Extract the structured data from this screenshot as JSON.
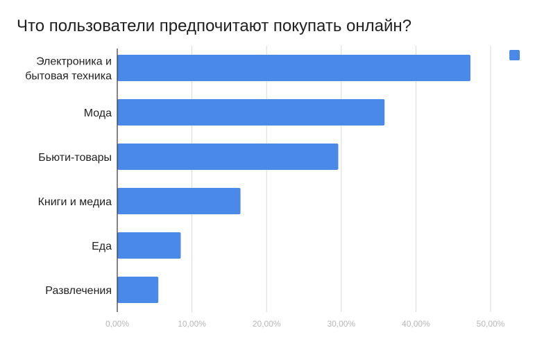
{
  "chart_data": {
    "type": "bar",
    "orientation": "horizontal",
    "title": "Что пользователи предпочитают покупать онлайн?",
    "categories": [
      [
        "Электроника и",
        "бытовая техника"
      ],
      [
        "Мода"
      ],
      [
        "Бьюти-товары"
      ],
      [
        "Книги и медиа"
      ],
      [
        "Еда"
      ],
      [
        "Развлечения"
      ]
    ],
    "series": [
      {
        "values": [
          47.3,
          35.8,
          29.6,
          16.5,
          8.5,
          5.5
        ]
      }
    ],
    "xlim": [
      0,
      50
    ],
    "x_ticks": [
      {
        "value": 0,
        "label": "0,00%"
      },
      {
        "value": 10,
        "label": "10,00%"
      },
      {
        "value": 20,
        "label": "20,00%"
      },
      {
        "value": 30,
        "label": "30,00%"
      },
      {
        "value": 40,
        "label": "40,00%"
      },
      {
        "value": 50,
        "label": "50,00%"
      }
    ],
    "grid": true,
    "legend": "top-right",
    "colors": {
      "bar": "#4a89e8",
      "grid": "#d9d9d9",
      "axis": "#333333",
      "tick_text": "#b7b7b7",
      "label_text": "#222222"
    }
  }
}
